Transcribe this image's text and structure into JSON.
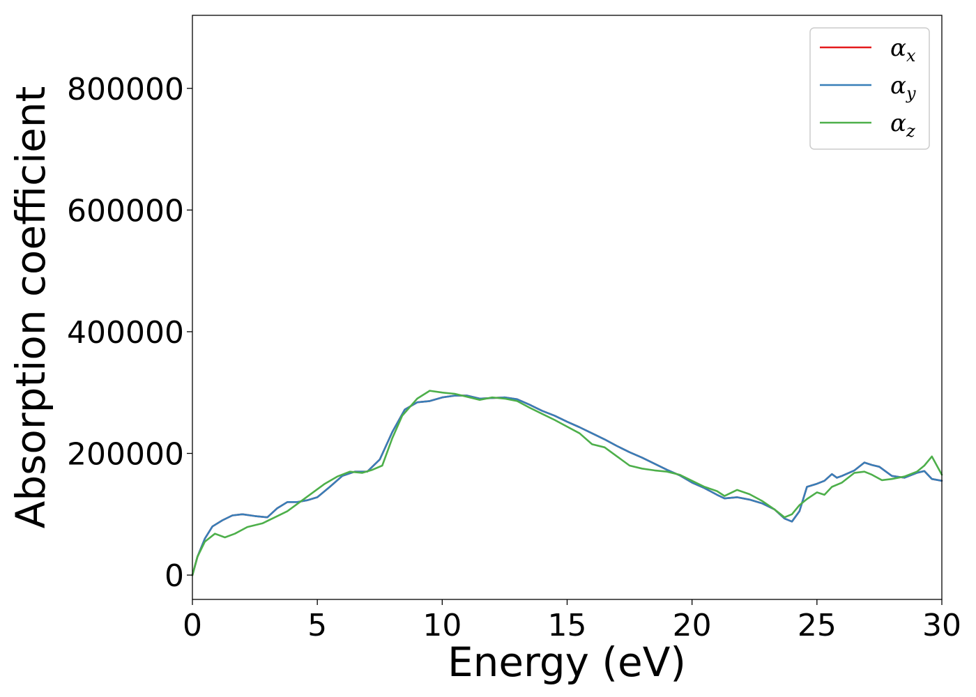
{
  "chart_data": {
    "type": "line",
    "title": "",
    "xlabel": "Energy (eV)",
    "ylabel": "Absorption coefficient",
    "xlim": [
      0,
      30
    ],
    "ylim": [
      -40000,
      920000
    ],
    "x_ticks": [
      0,
      5,
      10,
      15,
      20,
      25,
      30
    ],
    "x_tick_labels": [
      "0",
      "5",
      "10",
      "15",
      "20",
      "25",
      "30"
    ],
    "y_ticks": [
      0,
      200000,
      400000,
      600000,
      800000
    ],
    "y_tick_labels": [
      "0",
      "200000",
      "400000",
      "600000",
      "800000"
    ],
    "grid": false,
    "legend_position": "top-right",
    "series": [
      {
        "name": "α_x",
        "symbol": "α",
        "subscript": "x",
        "color": "#e41a1c",
        "x": [
          0,
          0.2,
          0.5,
          0.8,
          1.2,
          1.6,
          2.0,
          2.5,
          3.0,
          3.4,
          3.8,
          4.2,
          4.6,
          5.0,
          5.5,
          6.0,
          6.5,
          7.0,
          7.5,
          8.0,
          8.5,
          9.0,
          9.5,
          10.0,
          10.5,
          11.0,
          11.5,
          12.0,
          12.5,
          13.0,
          13.5,
          14.0,
          14.5,
          15.0,
          15.5,
          16.0,
          16.5,
          17.0,
          17.5,
          18.0,
          18.5,
          19.0,
          19.5,
          20.0,
          20.5,
          21.0,
          21.3,
          21.8,
          22.3,
          22.8,
          23.3,
          23.7,
          24.0,
          24.3,
          24.6,
          25.0,
          25.3,
          25.6,
          25.8,
          26.0,
          26.5,
          26.9,
          27.2,
          27.5,
          28.0,
          28.5,
          29.0,
          29.3,
          29.6,
          30.0
        ],
        "y": [
          0,
          30000,
          60000,
          80000,
          90000,
          98000,
          100000,
          97000,
          95000,
          110000,
          120000,
          120000,
          123000,
          128000,
          145000,
          163000,
          170000,
          170000,
          190000,
          235000,
          272000,
          284000,
          286000,
          292000,
          295000,
          295000,
          290000,
          291000,
          292000,
          289000,
          280000,
          270000,
          262000,
          252000,
          243000,
          233000,
          223000,
          212000,
          202000,
          193000,
          183000,
          173000,
          164000,
          152000,
          143000,
          132000,
          126000,
          128000,
          124000,
          118000,
          108000,
          93000,
          88000,
          105000,
          145000,
          150000,
          155000,
          166000,
          160000,
          163000,
          172000,
          185000,
          181000,
          178000,
          163000,
          160000,
          168000,
          171000,
          158000,
          155000
        ]
      },
      {
        "name": "α_y",
        "symbol": "α",
        "subscript": "y",
        "color": "#377eb8",
        "x": [
          0,
          0.2,
          0.5,
          0.8,
          1.2,
          1.6,
          2.0,
          2.5,
          3.0,
          3.4,
          3.8,
          4.2,
          4.6,
          5.0,
          5.5,
          6.0,
          6.5,
          7.0,
          7.5,
          8.0,
          8.5,
          9.0,
          9.5,
          10.0,
          10.5,
          11.0,
          11.5,
          12.0,
          12.5,
          13.0,
          13.5,
          14.0,
          14.5,
          15.0,
          15.5,
          16.0,
          16.5,
          17.0,
          17.5,
          18.0,
          18.5,
          19.0,
          19.5,
          20.0,
          20.5,
          21.0,
          21.3,
          21.8,
          22.3,
          22.8,
          23.3,
          23.7,
          24.0,
          24.3,
          24.6,
          25.0,
          25.3,
          25.6,
          25.8,
          26.0,
          26.5,
          26.9,
          27.2,
          27.5,
          28.0,
          28.5,
          29.0,
          29.3,
          29.6,
          30.0
        ],
        "y": [
          0,
          30000,
          60000,
          80000,
          90000,
          98000,
          100000,
          97000,
          95000,
          110000,
          120000,
          120000,
          123000,
          128000,
          145000,
          163000,
          170000,
          170000,
          190000,
          235000,
          272000,
          284000,
          286000,
          292000,
          295000,
          295000,
          290000,
          291000,
          292000,
          289000,
          280000,
          270000,
          262000,
          252000,
          243000,
          233000,
          223000,
          212000,
          202000,
          193000,
          183000,
          173000,
          164000,
          152000,
          143000,
          132000,
          126000,
          128000,
          124000,
          118000,
          108000,
          93000,
          88000,
          105000,
          145000,
          150000,
          155000,
          166000,
          160000,
          163000,
          172000,
          185000,
          181000,
          178000,
          163000,
          160000,
          168000,
          171000,
          158000,
          155000
        ]
      },
      {
        "name": "α_z",
        "symbol": "α",
        "subscript": "z",
        "color": "#4daf4a",
        "x": [
          0,
          0.2,
          0.5,
          0.9,
          1.3,
          1.7,
          2.2,
          2.8,
          3.3,
          3.8,
          4.3,
          4.8,
          5.3,
          5.8,
          6.3,
          6.8,
          7.2,
          7.6,
          8.0,
          8.4,
          9.0,
          9.5,
          10.0,
          10.5,
          11.0,
          11.5,
          12.0,
          12.5,
          13.0,
          13.5,
          14.0,
          14.5,
          15.0,
          15.5,
          16.0,
          16.5,
          17.0,
          17.5,
          18.0,
          18.5,
          19.0,
          19.5,
          20.0,
          20.5,
          21.0,
          21.3,
          21.8,
          22.3,
          22.8,
          23.3,
          23.7,
          24.0,
          24.3,
          24.6,
          25.0,
          25.3,
          25.6,
          26.0,
          26.5,
          26.9,
          27.2,
          27.6,
          28.0,
          28.5,
          29.0,
          29.3,
          29.6,
          30.0
        ],
        "y": [
          0,
          30000,
          55000,
          68000,
          62000,
          68000,
          79000,
          85000,
          95000,
          105000,
          120000,
          135000,
          150000,
          162000,
          170000,
          168000,
          173000,
          180000,
          225000,
          262000,
          290000,
          303000,
          300000,
          298000,
          293000,
          288000,
          292000,
          290000,
          286000,
          275000,
          265000,
          255000,
          244000,
          233000,
          215000,
          210000,
          195000,
          180000,
          175000,
          172000,
          170000,
          165000,
          155000,
          145000,
          138000,
          130000,
          140000,
          133000,
          122000,
          108000,
          95000,
          100000,
          115000,
          125000,
          136000,
          132000,
          145000,
          152000,
          168000,
          170000,
          165000,
          156000,
          158000,
          162000,
          170000,
          180000,
          195000,
          165000
        ]
      }
    ]
  }
}
